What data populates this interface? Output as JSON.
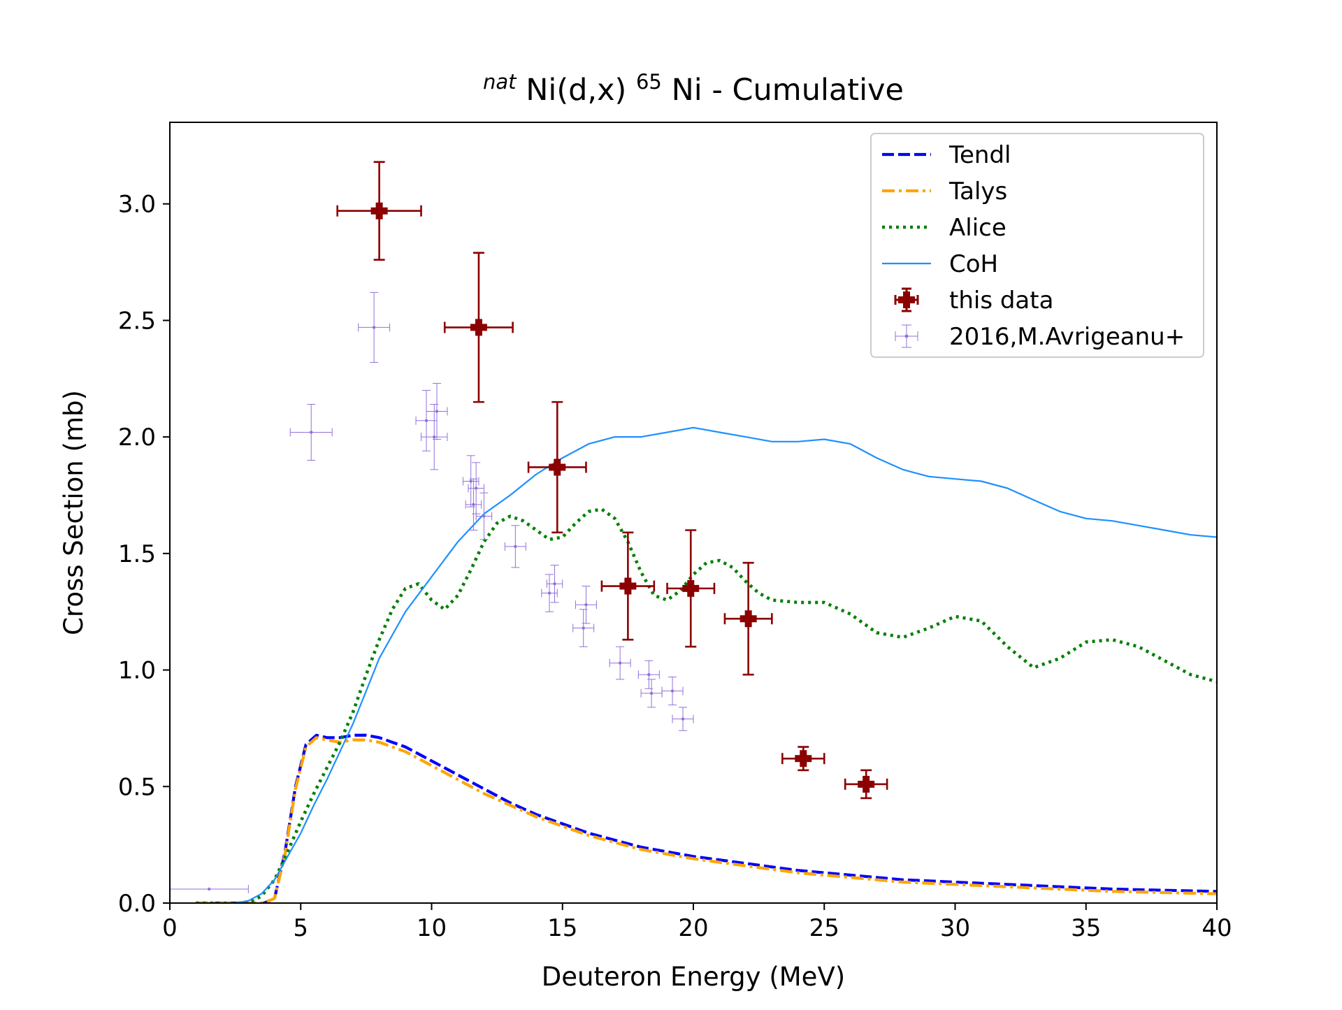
{
  "chart_data": {
    "type": "line",
    "title": {
      "sup_prefix": "nat",
      "base": "Ni(d,x)",
      "sup_mid": "65",
      "rest": "Ni - Cumulative"
    },
    "xlabel": "Deuteron Energy (MeV)",
    "ylabel": "Cross Section (mb)",
    "xlim": [
      0,
      40
    ],
    "ylim": [
      0,
      3.35
    ],
    "xticks": [
      0,
      5,
      10,
      15,
      20,
      25,
      30,
      35,
      40
    ],
    "xtick_labels": [
      "0",
      "5",
      "10",
      "15",
      "20",
      "25",
      "30",
      "35",
      "40"
    ],
    "yticks": [
      0,
      0.5,
      1.0,
      1.5,
      2.0,
      2.5,
      3.0
    ],
    "ytick_labels": [
      "0.0",
      "0.5",
      "1.0",
      "1.5",
      "2.0",
      "2.5",
      "3.0"
    ],
    "grid": false,
    "legend_position": "top-right",
    "series": [
      {
        "name": "Tendl",
        "kind": "line",
        "style": "dashed",
        "color": "#0000ff",
        "x": [
          1.0,
          2.0,
          3.0,
          3.6,
          4.0,
          4.4,
          4.8,
          5.2,
          5.6,
          6.0,
          6.5,
          7.0,
          7.5,
          8.0,
          9.0,
          10.0,
          11.0,
          12.0,
          13.0,
          14.0,
          15.0,
          16.0,
          17.0,
          18.0,
          19.0,
          20.0,
          22.0,
          24.0,
          26.0,
          28.0,
          30.0,
          32.0,
          34.0,
          36.0,
          38.0,
          40.0
        ],
        "y": [
          0.0,
          0.0,
          0.0,
          0.0,
          0.02,
          0.22,
          0.5,
          0.68,
          0.72,
          0.71,
          0.71,
          0.72,
          0.72,
          0.71,
          0.67,
          0.61,
          0.55,
          0.49,
          0.43,
          0.38,
          0.34,
          0.3,
          0.27,
          0.24,
          0.22,
          0.2,
          0.17,
          0.14,
          0.12,
          0.1,
          0.09,
          0.08,
          0.07,
          0.06,
          0.055,
          0.05
        ]
      },
      {
        "name": "Talys",
        "kind": "line",
        "style": "dashdot",
        "color": "#ffa500",
        "x": [
          1.0,
          2.0,
          3.0,
          3.6,
          4.0,
          4.4,
          4.8,
          5.2,
          5.6,
          6.0,
          6.5,
          7.0,
          7.5,
          8.0,
          9.0,
          10.0,
          11.0,
          12.0,
          13.0,
          14.0,
          15.0,
          16.0,
          17.0,
          18.0,
          19.0,
          20.0,
          22.0,
          24.0,
          26.0,
          28.0,
          30.0,
          32.0,
          34.0,
          36.0,
          38.0,
          40.0
        ],
        "y": [
          0.0,
          0.0,
          0.0,
          0.0,
          0.02,
          0.21,
          0.49,
          0.67,
          0.71,
          0.7,
          0.69,
          0.7,
          0.7,
          0.69,
          0.65,
          0.59,
          0.53,
          0.47,
          0.42,
          0.37,
          0.33,
          0.29,
          0.26,
          0.23,
          0.21,
          0.19,
          0.16,
          0.13,
          0.11,
          0.09,
          0.08,
          0.07,
          0.06,
          0.05,
          0.045,
          0.04
        ]
      },
      {
        "name": "Alice",
        "kind": "line",
        "style": "dotted",
        "color": "#008000",
        "x": [
          1.0,
          2.0,
          3.0,
          3.5,
          4.0,
          4.5,
          5.0,
          5.5,
          6.0,
          6.5,
          7.0,
          7.5,
          8.0,
          8.5,
          9.0,
          9.5,
          10.0,
          10.5,
          11.0,
          11.5,
          12.0,
          12.5,
          13.0,
          13.5,
          14.0,
          14.5,
          15.0,
          15.5,
          16.0,
          16.5,
          17.0,
          17.5,
          18.0,
          18.5,
          19.0,
          19.5,
          20.0,
          20.5,
          21.0,
          21.5,
          22.0,
          22.5,
          23.0,
          24.0,
          25.0,
          26.0,
          27.0,
          28.0,
          29.0,
          30.0,
          31.0,
          32.0,
          33.0,
          34.0,
          35.0,
          36.0,
          37.0,
          38.0,
          39.0,
          40.0
        ],
        "y": [
          0.0,
          0.0,
          0.0,
          0.03,
          0.1,
          0.22,
          0.35,
          0.47,
          0.58,
          0.69,
          0.82,
          0.98,
          1.13,
          1.26,
          1.35,
          1.37,
          1.3,
          1.26,
          1.32,
          1.43,
          1.55,
          1.63,
          1.66,
          1.64,
          1.6,
          1.56,
          1.57,
          1.63,
          1.68,
          1.69,
          1.65,
          1.55,
          1.42,
          1.32,
          1.3,
          1.34,
          1.41,
          1.46,
          1.47,
          1.44,
          1.38,
          1.33,
          1.3,
          1.29,
          1.29,
          1.24,
          1.16,
          1.14,
          1.18,
          1.23,
          1.21,
          1.1,
          1.01,
          1.05,
          1.12,
          1.13,
          1.1,
          1.04,
          0.98,
          0.95
        ]
      },
      {
        "name": "CoH",
        "kind": "line",
        "style": "solid",
        "color": "#1e90ff",
        "x": [
          1.0,
          2.0,
          2.5,
          3.0,
          3.5,
          4.0,
          4.5,
          5.0,
          5.5,
          6.0,
          6.5,
          7.0,
          7.5,
          8.0,
          9.0,
          10.0,
          11.0,
          12.0,
          13.0,
          14.0,
          15.0,
          16.0,
          17.0,
          18.0,
          19.0,
          20.0,
          21.0,
          22.0,
          23.0,
          24.0,
          25.0,
          26.0,
          27.0,
          28.0,
          29.0,
          30.0,
          31.0,
          32.0,
          33.0,
          34.0,
          35.0,
          36.0,
          37.0,
          38.0,
          39.0,
          40.0
        ],
        "y": [
          0.0,
          0.0,
          0.0,
          0.01,
          0.04,
          0.1,
          0.2,
          0.3,
          0.42,
          0.53,
          0.65,
          0.77,
          0.91,
          1.05,
          1.25,
          1.4,
          1.55,
          1.67,
          1.75,
          1.84,
          1.91,
          1.97,
          2.0,
          2.0,
          2.02,
          2.04,
          2.02,
          2.0,
          1.98,
          1.98,
          1.99,
          1.97,
          1.91,
          1.86,
          1.83,
          1.82,
          1.81,
          1.78,
          1.73,
          1.68,
          1.65,
          1.64,
          1.62,
          1.6,
          1.58,
          1.57
        ]
      },
      {
        "name": "this data",
        "kind": "errorbar",
        "marker": "P",
        "color": "#8b0000",
        "points": [
          {
            "x": 8.0,
            "y": 2.97,
            "xerr": 1.6,
            "yerr": 0.21
          },
          {
            "x": 11.8,
            "y": 2.47,
            "xerr": 1.3,
            "yerr": 0.32
          },
          {
            "x": 14.8,
            "y": 1.87,
            "xerr": 1.1,
            "yerr": 0.28
          },
          {
            "x": 17.5,
            "y": 1.36,
            "xerr": 1.0,
            "yerr": 0.23
          },
          {
            "x": 19.9,
            "y": 1.35,
            "xerr": 0.9,
            "yerr": 0.25
          },
          {
            "x": 22.1,
            "y": 1.22,
            "xerr": 0.9,
            "yerr": 0.24
          },
          {
            "x": 24.2,
            "y": 0.62,
            "xerr": 0.8,
            "yerr": 0.05
          },
          {
            "x": 26.6,
            "y": 0.51,
            "xerr": 0.8,
            "yerr": 0.06
          }
        ]
      },
      {
        "name": "2016,M.Avrigeanu+",
        "kind": "errorbar",
        "marker": "dot",
        "color": "#9370db",
        "points": [
          {
            "x": 1.5,
            "y": 0.06,
            "xerr": 1.5,
            "yerr": 0.0
          },
          {
            "x": 5.4,
            "y": 2.02,
            "xerr": 0.8,
            "yerr": 0.12
          },
          {
            "x": 7.8,
            "y": 2.47,
            "xerr": 0.6,
            "yerr": 0.15
          },
          {
            "x": 9.8,
            "y": 2.07,
            "xerr": 0.4,
            "yerr": 0.13
          },
          {
            "x": 10.2,
            "y": 2.11,
            "xerr": 0.4,
            "yerr": 0.12
          },
          {
            "x": 10.1,
            "y": 2.0,
            "xerr": 0.5,
            "yerr": 0.14
          },
          {
            "x": 11.5,
            "y": 1.81,
            "xerr": 0.3,
            "yerr": 0.11
          },
          {
            "x": 11.7,
            "y": 1.78,
            "xerr": 0.3,
            "yerr": 0.11
          },
          {
            "x": 11.6,
            "y": 1.71,
            "xerr": 0.3,
            "yerr": 0.11
          },
          {
            "x": 12.0,
            "y": 1.66,
            "xerr": 0.3,
            "yerr": 0.1
          },
          {
            "x": 13.2,
            "y": 1.53,
            "xerr": 0.4,
            "yerr": 0.09
          },
          {
            "x": 14.5,
            "y": 1.33,
            "xerr": 0.3,
            "yerr": 0.08
          },
          {
            "x": 14.7,
            "y": 1.37,
            "xerr": 0.3,
            "yerr": 0.08
          },
          {
            "x": 15.9,
            "y": 1.28,
            "xerr": 0.4,
            "yerr": 0.08
          },
          {
            "x": 15.8,
            "y": 1.18,
            "xerr": 0.4,
            "yerr": 0.08
          },
          {
            "x": 17.2,
            "y": 1.03,
            "xerr": 0.4,
            "yerr": 0.07
          },
          {
            "x": 18.3,
            "y": 0.98,
            "xerr": 0.4,
            "yerr": 0.06
          },
          {
            "x": 18.4,
            "y": 0.9,
            "xerr": 0.4,
            "yerr": 0.06
          },
          {
            "x": 19.2,
            "y": 0.91,
            "xerr": 0.4,
            "yerr": 0.06
          },
          {
            "x": 19.6,
            "y": 0.79,
            "xerr": 0.4,
            "yerr": 0.05
          }
        ]
      }
    ]
  }
}
